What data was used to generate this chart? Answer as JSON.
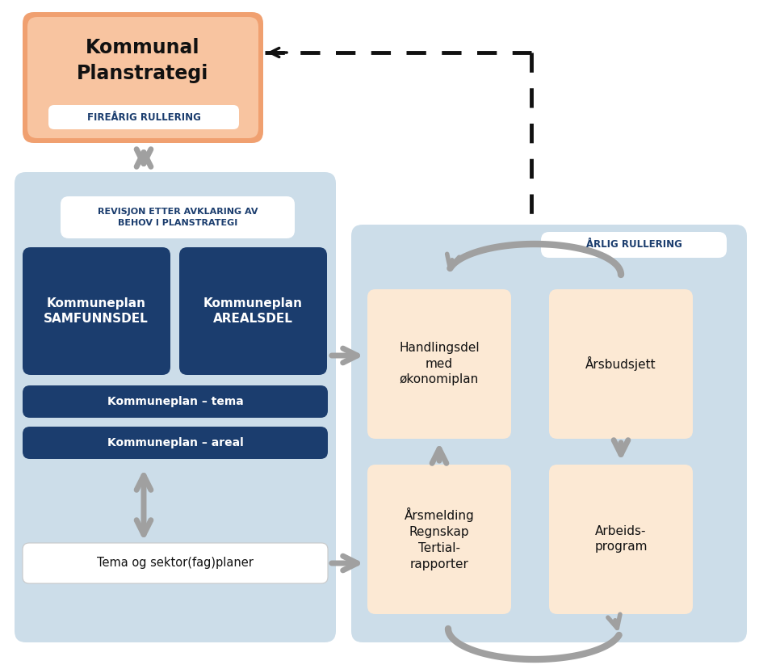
{
  "bg_color": "#ffffff",
  "left_panel_color": "#ccdde9",
  "right_panel_color": "#ccdde9",
  "salmon_outer": "#f2a06a",
  "salmon_inner": "#f8c4a0",
  "dark_blue": "#1b3d6e",
  "peach": "#fce9d4",
  "white": "#ffffff",
  "gray": "#a0a0a0",
  "dark": "#1a1a1a",
  "text_blue": "#1b3d6e",
  "kommunal_title": "Kommunal\nPlanstrategi",
  "kommunal_sub": "FIREÅRIG RULLERING",
  "revisjon_label": "REVISJON ETTER AVKLARING AV\nBEHOV I PLANSTRATEGI",
  "kp_samf": "Kommuneplan\nSAMFUNNSDEL",
  "kp_areal": "Kommuneplan\nAREALSDEL",
  "kp_tema": "Kommuneplan – tema",
  "kp_areal2": "Kommuneplan – areal",
  "tema_sektor": "Tema og sektor(fag)planer",
  "handlingsdel": "Handlingsdel\nmed\nøkonomiplan",
  "arsbudsjett": "Årsbudsjett",
  "arsmelding": "Årsmelding\nRegnskap\nTertial-\nrapporter",
  "arbeidsprogram": "Arbeids-\nprogram",
  "arlig_rullering": "ÅRLIG RULLERING"
}
